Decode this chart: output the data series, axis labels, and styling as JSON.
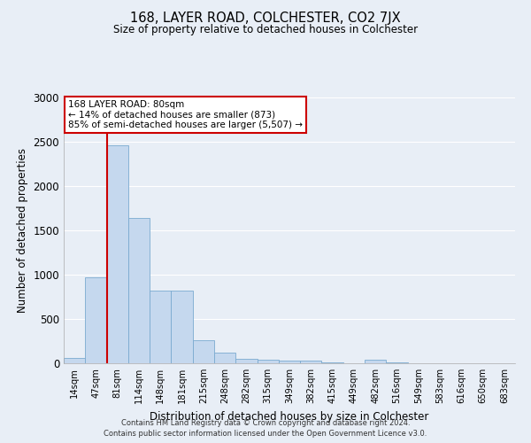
{
  "title": "168, LAYER ROAD, COLCHESTER, CO2 7JX",
  "subtitle": "Size of property relative to detached houses in Colchester",
  "xlabel": "Distribution of detached houses by size in Colchester",
  "ylabel": "Number of detached properties",
  "footer_line1": "Contains HM Land Registry data © Crown copyright and database right 2024.",
  "footer_line2": "Contains public sector information licensed under the Open Government Licence v3.0.",
  "annotation_title": "168 LAYER ROAD: 80sqm",
  "annotation_line1": "← 14% of detached houses are smaller (873)",
  "annotation_line2": "85% of semi-detached houses are larger (5,507) →",
  "bins": [
    "14sqm",
    "47sqm",
    "81sqm",
    "114sqm",
    "148sqm",
    "181sqm",
    "215sqm",
    "248sqm",
    "282sqm",
    "315sqm",
    "349sqm",
    "382sqm",
    "415sqm",
    "449sqm",
    "482sqm",
    "516sqm",
    "549sqm",
    "583sqm",
    "616sqm",
    "650sqm",
    "683sqm"
  ],
  "values": [
    60,
    975,
    2460,
    1640,
    820,
    820,
    260,
    120,
    50,
    40,
    30,
    30,
    10,
    0,
    40,
    10,
    0,
    0,
    0,
    0,
    0
  ],
  "bar_color": "#c5d8ee",
  "bar_edge_color": "#7aaad0",
  "vline_color": "#cc0000",
  "vline_x_index": 2,
  "annotation_box_color": "#ffffff",
  "annotation_box_edge_color": "#cc0000",
  "background_color": "#e8eef6",
  "plot_bg_color": "#e8eef6",
  "grid_color": "#ffffff",
  "ylim": [
    0,
    3000
  ],
  "yticks": [
    0,
    500,
    1000,
    1500,
    2000,
    2500,
    3000
  ]
}
